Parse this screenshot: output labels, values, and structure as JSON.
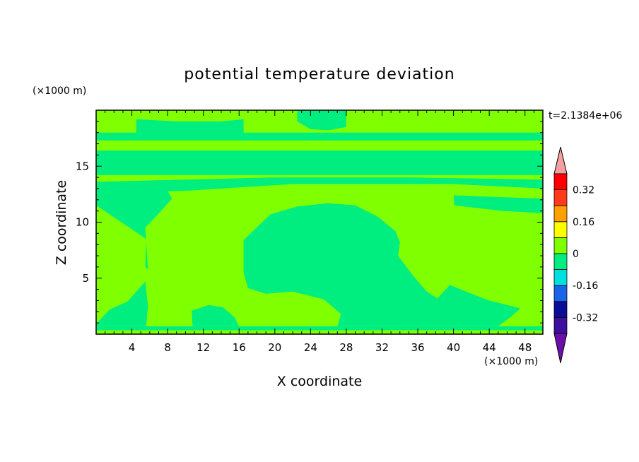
{
  "chart_data": {
    "type": "heatmap",
    "title": "potential temperature deviation",
    "xlabel": "X coordinate",
    "ylabel": "Z coordinate",
    "x_unit": "(×1000 m)",
    "y_unit": "(×1000 m)",
    "time_label": "t=2.1384e+06",
    "xlim": [
      0,
      50
    ],
    "ylim": [
      0,
      20
    ],
    "x_ticks": [
      4,
      8,
      12,
      16,
      20,
      24,
      28,
      32,
      36,
      40,
      44,
      48
    ],
    "y_ticks": [
      5,
      10,
      15
    ],
    "colorbar": {
      "labels": [
        "0.32",
        "0.16",
        "0",
        "-0.16",
        "-0.32"
      ],
      "label_values": [
        0.32,
        0.16,
        0,
        -0.16,
        -0.32
      ],
      "levels": [
        -0.4,
        -0.32,
        -0.24,
        -0.16,
        -0.08,
        0,
        0.08,
        0.16,
        0.24,
        0.32,
        0.4
      ],
      "colors": [
        "#6a0fa8",
        "#3d0f9e",
        "#0c0c9a",
        "#1a64e8",
        "#00e0e0",
        "#00ee80",
        "#80ff00",
        "#ffff00",
        "#ffa000",
        "#ff3a18",
        "#ff0000",
        "#f4a0a0"
      ]
    },
    "regions": [
      {
        "value": 0.04,
        "polygon": [
          [
            0,
            0
          ],
          [
            50,
            0
          ],
          [
            50,
            20
          ],
          [
            0,
            20
          ]
        ]
      },
      {
        "value": -0.04,
        "polygon": [
          [
            0,
            0.35
          ],
          [
            50,
            0.35
          ],
          [
            50,
            0.7
          ],
          [
            0,
            0.7
          ]
        ]
      },
      {
        "value": -0.04,
        "polygon": [
          [
            0,
            14.2
          ],
          [
            50,
            14.2
          ],
          [
            50,
            16.4
          ],
          [
            0,
            16.4
          ]
        ]
      },
      {
        "value": -0.04,
        "polygon": [
          [
            0,
            12.6
          ],
          [
            10,
            12.8
          ],
          [
            22,
            13.4
          ],
          [
            40,
            13.4
          ],
          [
            50,
            13.0
          ],
          [
            50,
            13.8
          ],
          [
            35,
            14.0
          ],
          [
            20,
            14.0
          ],
          [
            0,
            13.6
          ]
        ]
      },
      {
        "value": -0.04,
        "polygon": [
          [
            0,
            17.3
          ],
          [
            50,
            17.3
          ],
          [
            50,
            18.0
          ],
          [
            0,
            18.0
          ]
        ]
      },
      {
        "value": -0.04,
        "polygon": [
          [
            4.5,
            19.2
          ],
          [
            9,
            19.0
          ],
          [
            14,
            19.0
          ],
          [
            16.5,
            19.2
          ],
          [
            16.5,
            18.0
          ],
          [
            12,
            17.7
          ],
          [
            8,
            17.5
          ],
          [
            4.5,
            18.0
          ]
        ]
      },
      {
        "value": -0.04,
        "polygon": [
          [
            22.5,
            20
          ],
          [
            28,
            20
          ],
          [
            28,
            18.5
          ],
          [
            26,
            18.2
          ],
          [
            24,
            18.3
          ],
          [
            22.5,
            19.0
          ]
        ]
      },
      {
        "value": -0.04,
        "polygon": [
          [
            0,
            0.9
          ],
          [
            1.5,
            2.2
          ],
          [
            3.5,
            2.9
          ],
          [
            5.5,
            4.7
          ],
          [
            5.8,
            2.5
          ],
          [
            5.6,
            0.7
          ],
          [
            0,
            0.7
          ]
        ]
      },
      {
        "value": -0.04,
        "polygon": [
          [
            5.8,
            5.8
          ],
          [
            5.5,
            9.5
          ],
          [
            6.8,
            10.6
          ],
          [
            8.5,
            12.1
          ],
          [
            8.0,
            12.8
          ],
          [
            0,
            12.6
          ],
          [
            0,
            11.5
          ],
          [
            5.6,
            8.5
          ],
          [
            5.5,
            6.0
          ]
        ]
      },
      {
        "value": -0.04,
        "polygon": [
          [
            16.5,
            5.5
          ],
          [
            16.5,
            8.4
          ],
          [
            19.5,
            10.7
          ],
          [
            22.5,
            11.4
          ],
          [
            26,
            11.7
          ],
          [
            29,
            11.5
          ],
          [
            31.5,
            10.5
          ],
          [
            33.5,
            9.2
          ],
          [
            34,
            8.2
          ],
          [
            33.8,
            7.0
          ],
          [
            35.5,
            5.2
          ],
          [
            37,
            3.8
          ],
          [
            38.2,
            3.2
          ],
          [
            39.6,
            4.4
          ],
          [
            42,
            3.6
          ],
          [
            44,
            3.0
          ],
          [
            47.5,
            2.3
          ],
          [
            46.5,
            1.6
          ],
          [
            45.0,
            0.7
          ],
          [
            27,
            0.7
          ],
          [
            27.4,
            1.8
          ],
          [
            25.5,
            3.1
          ],
          [
            22,
            3.8
          ],
          [
            19,
            3.6
          ],
          [
            17,
            4.1
          ]
        ]
      },
      {
        "value": -0.04,
        "polygon": [
          [
            10.8,
            0.7
          ],
          [
            10.7,
            2.1
          ],
          [
            12.6,
            2.6
          ],
          [
            14.2,
            2.4
          ],
          [
            15.5,
            1.5
          ],
          [
            16.0,
            0.7
          ]
        ]
      },
      {
        "value": -0.04,
        "polygon": [
          [
            40.1,
            11.5
          ],
          [
            45.5,
            11.0
          ],
          [
            50,
            10.8
          ],
          [
            50,
            12.1
          ],
          [
            40.0,
            12.4
          ]
        ]
      }
    ]
  }
}
